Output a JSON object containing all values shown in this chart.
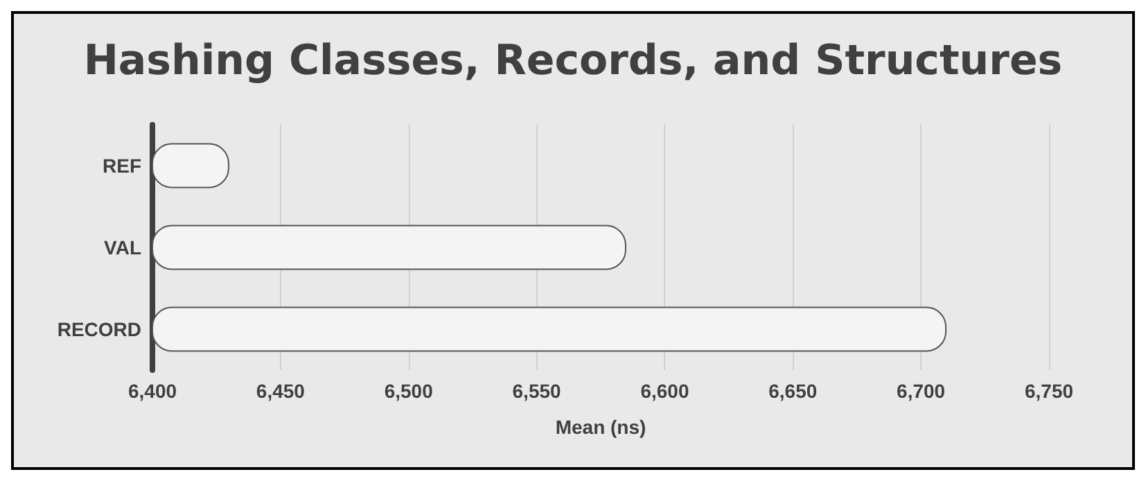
{
  "chart_data": {
    "type": "bar",
    "orientation": "horizontal",
    "title": "Hashing Classes, Records, and Structures",
    "xlabel": "Mean (ns)",
    "categories": [
      "REF",
      "VAL",
      "RECORD"
    ],
    "values": [
      6430,
      6585,
      6710
    ],
    "color": "#f4f4f4",
    "xlim": [
      6400,
      6750
    ],
    "xticks": [
      {
        "value": 6400,
        "label": "6,400"
      },
      {
        "value": 6450,
        "label": "6,450"
      },
      {
        "value": 6500,
        "label": "6,500"
      },
      {
        "value": 6550,
        "label": "6,550"
      },
      {
        "value": 6600,
        "label": "6,600"
      },
      {
        "value": 6650,
        "label": "6,650"
      },
      {
        "value": 6700,
        "label": "6,700"
      },
      {
        "value": 6750,
        "label": "6,750"
      }
    ],
    "grid": "x"
  }
}
